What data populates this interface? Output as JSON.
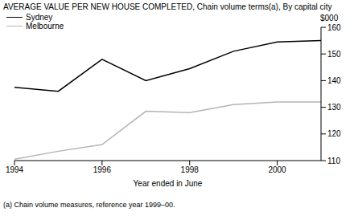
{
  "chart_data": {
    "type": "line",
    "title": "AVERAGE VALUE PER NEW HOUSE COMPLETED, Chain volume terms(a), By capital city",
    "x_label": "Year ended in June",
    "y_label": "$000",
    "footnote": "(a) Chain volume measures, reference year 1999–00.",
    "x": [
      1994,
      1995,
      1996,
      1997,
      1998,
      1999,
      2000,
      2001
    ],
    "series": [
      {
        "name": "Sydney",
        "color": "#000000",
        "values": [
          137.5,
          136,
          148,
          140,
          144.5,
          151,
          154.5,
          155
        ]
      },
      {
        "name": "Melbourne",
        "color": "#b4b4b4",
        "values": [
          110.5,
          113.5,
          116,
          128.5,
          128,
          131,
          132,
          132
        ]
      }
    ],
    "xlim": [
      1994,
      2001
    ],
    "xticks": [
      1994,
      1996,
      1998,
      2000
    ],
    "ylim": [
      110,
      160
    ],
    "yticks": [
      110,
      120,
      130,
      140,
      150,
      160
    ],
    "grid": false,
    "legend": "upper left"
  }
}
